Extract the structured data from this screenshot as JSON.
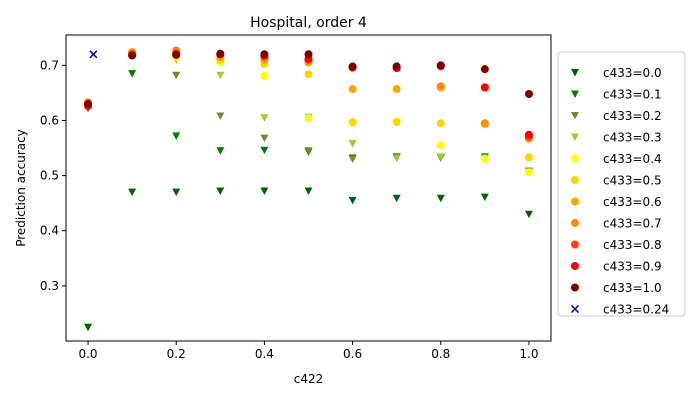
{
  "chart_data": {
    "type": "scatter",
    "title": "Hospital, order 4",
    "xlabel": "c422",
    "ylabel": "Prediction accuracy",
    "xlim": [
      -0.05,
      1.05
    ],
    "ylim": [
      0.2,
      0.755
    ],
    "xticks": [
      "0.0",
      "0.2",
      "0.4",
      "0.6",
      "0.8",
      "1.0"
    ],
    "yticks": [
      "0.3",
      "0.4",
      "0.5",
      "0.6",
      "0.7"
    ],
    "legend_position": "outside-right",
    "x": [
      0.0,
      0.1,
      0.2,
      0.3,
      0.4,
      0.5,
      0.6,
      0.7,
      0.8,
      0.9,
      1.0
    ],
    "series": [
      {
        "name": "c433=0.0",
        "marker": "triangle-down",
        "color": "#006400",
        "values": [
          0.225,
          0.47,
          0.47,
          0.472,
          0.472,
          0.472,
          0.455,
          0.459,
          0.459,
          0.461,
          0.43
        ]
      },
      {
        "name": "c433=0.1",
        "marker": "triangle-down",
        "color": "#008000",
        "values": [
          0.622,
          0.685,
          0.572,
          0.545,
          0.546,
          0.543,
          0.532,
          0.534,
          0.533,
          0.534,
          0.508
        ]
      },
      {
        "name": "c433=0.2",
        "marker": "triangle-down",
        "color": "#6b8e23",
        "values": [
          0.624,
          0.72,
          0.682,
          0.608,
          0.568,
          0.545,
          0.53,
          0.532,
          0.532,
          0.532,
          0.506
        ]
      },
      {
        "name": "c433=0.3",
        "marker": "triangle-down",
        "color": "#9acd32",
        "values": [
          0.625,
          0.722,
          0.71,
          0.682,
          0.605,
          0.606,
          0.558,
          0.532,
          0.534,
          0.532,
          0.507
        ]
      },
      {
        "name": "c433=0.4",
        "marker": "circle",
        "color": "#ffff00",
        "values": [
          0.628,
          0.72,
          0.715,
          0.706,
          0.681,
          0.604,
          0.596,
          0.598,
          0.555,
          0.53,
          0.506
        ]
      },
      {
        "name": "c433=0.5",
        "marker": "circle",
        "color": "#ffd700",
        "values": [
          0.63,
          0.722,
          0.718,
          0.71,
          0.702,
          0.684,
          0.597,
          0.597,
          0.595,
          0.594,
          0.533
        ]
      },
      {
        "name": "c433=0.6",
        "marker": "circle",
        "color": "#ffa500",
        "values": [
          0.632,
          0.723,
          0.725,
          0.715,
          0.71,
          0.705,
          0.657,
          0.657,
          0.66,
          0.594,
          0.567
        ]
      },
      {
        "name": "c433=0.7",
        "marker": "circle",
        "color": "#ff8c00",
        "values": [
          0.633,
          0.724,
          0.727,
          0.718,
          0.714,
          0.708,
          0.695,
          0.695,
          0.662,
          0.595,
          0.57
        ]
      },
      {
        "name": "c433=0.8",
        "marker": "circle",
        "color": "#ff4500",
        "values": [
          0.628,
          0.72,
          0.722,
          0.72,
          0.716,
          0.71,
          0.697,
          0.695,
          0.698,
          0.66,
          0.57
        ]
      },
      {
        "name": "c433=0.9",
        "marker": "circle",
        "color": "#ff0000",
        "values": [
          0.626,
          0.718,
          0.72,
          0.72,
          0.718,
          0.712,
          0.698,
          0.695,
          0.699,
          0.66,
          0.574
        ]
      },
      {
        "name": "c433=1.0",
        "marker": "circle",
        "color": "#800000",
        "values": [
          0.63,
          0.718,
          0.719,
          0.721,
          0.72,
          0.72,
          0.697,
          0.698,
          0.7,
          0.693,
          0.648
        ]
      }
    ],
    "extra_points": [
      {
        "name": "c433=0.24",
        "marker": "x",
        "color": "#0000cd",
        "x": [
          0.012
        ],
        "y": [
          0.72
        ]
      }
    ]
  }
}
